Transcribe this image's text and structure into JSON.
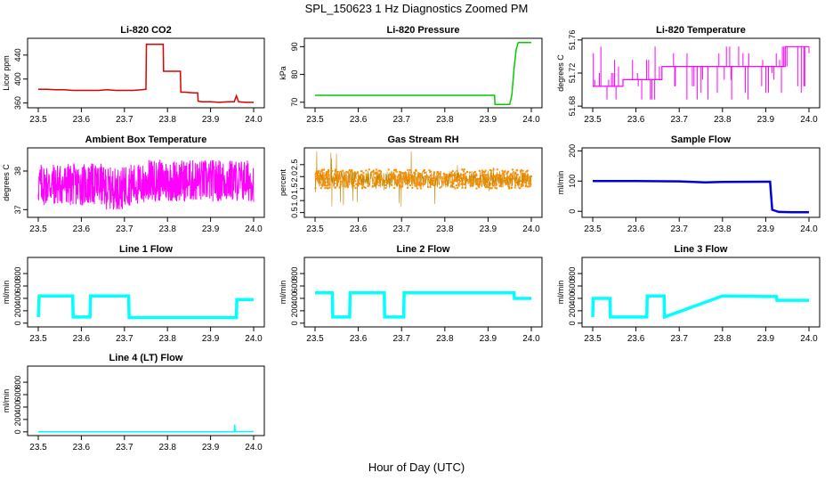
{
  "figure": {
    "title": "SPL_150623  1 Hz Diagnostics Zoomed PM",
    "xlabel": "Hour of Day (UTC)"
  },
  "chart_data": [
    {
      "id": "co2",
      "type": "line",
      "title": "Li-820 CO2",
      "ylabel": "Licor ppm",
      "color": "#dd0000",
      "xlim": [
        23.5,
        24.0
      ],
      "ylim": [
        352,
        468
      ],
      "xticks": [
        23.5,
        23.6,
        23.7,
        23.8,
        23.9,
        24.0
      ],
      "yticks": [
        360,
        400,
        440
      ],
      "series": [
        {
          "x": [
            23.5,
            23.52,
            23.54,
            23.56,
            23.58,
            23.6,
            23.62,
            23.64,
            23.66,
            23.68,
            23.7,
            23.72,
            23.74,
            23.75,
            23.751,
            23.76,
            23.78,
            23.79,
            23.791,
            23.8,
            23.82,
            23.83,
            23.831,
            23.84,
            23.86,
            23.87,
            23.871,
            23.88,
            23.9,
            23.92,
            23.94,
            23.955,
            23.96,
            23.965,
            23.98,
            24.0
          ],
          "y": [
            383,
            383,
            382,
            382,
            381,
            381,
            381,
            381,
            382,
            381,
            381,
            381,
            382,
            383,
            458,
            458,
            458,
            458,
            413,
            413,
            413,
            413,
            378,
            378,
            377,
            377,
            363,
            362,
            362,
            361,
            362,
            362,
            372,
            362,
            361,
            361
          ]
        }
      ]
    },
    {
      "id": "pressure",
      "type": "line",
      "title": "Li-820 Pressure",
      "ylabel": "kPa",
      "color": "#00cc00",
      "xlim": [
        23.5,
        24.0
      ],
      "ylim": [
        68,
        93
      ],
      "xticks": [
        23.5,
        23.6,
        23.7,
        23.8,
        23.9,
        24.0
      ],
      "yticks": [
        70,
        80,
        90
      ],
      "series": [
        {
          "x": [
            23.5,
            23.6,
            23.7,
            23.8,
            23.9,
            23.915,
            23.916,
            23.95,
            23.955,
            23.96,
            23.965,
            23.97,
            24.0
          ],
          "y": [
            72.5,
            72.5,
            72.5,
            72.5,
            72.5,
            72.5,
            69.2,
            69.2,
            72.5,
            82,
            89,
            91.5,
            91.5
          ]
        }
      ]
    },
    {
      "id": "licor-temp",
      "type": "line",
      "title": "Li-820 Temperature",
      "ylabel": "degrees C",
      "color": "#ff00ff",
      "xlim": [
        23.5,
        24.0
      ],
      "ylim": [
        51.678,
        51.762
      ],
      "xticks": [
        23.5,
        23.6,
        23.7,
        23.8,
        23.9,
        24.0
      ],
      "yticks": [
        51.68,
        51.72,
        51.76
      ],
      "series": [
        {
          "x": [
            23.5,
            23.54,
            23.55,
            23.56,
            23.57,
            23.58,
            23.6,
            23.62,
            23.64,
            23.66,
            23.7,
            23.75,
            23.8,
            23.85,
            23.9,
            23.94,
            23.945,
            23.96,
            23.98,
            24.0
          ],
          "y": [
            51.704,
            51.704,
            51.704,
            51.704,
            51.712,
            51.712,
            51.712,
            51.712,
            51.712,
            51.728,
            51.728,
            51.728,
            51.728,
            51.728,
            51.728,
            51.728,
            51.752,
            51.752,
            51.752,
            51.752
          ]
        }
      ]
    },
    {
      "id": "box-temp",
      "type": "line",
      "title": "Ambient Box Temperature",
      "ylabel": "degrees C",
      "color": "#ff00ff",
      "xlim": [
        23.5,
        24.0
      ],
      "ylim": [
        36.8,
        38.6
      ],
      "xticks": [
        23.5,
        23.6,
        23.7,
        23.8,
        23.9,
        24.0
      ],
      "yticks": [
        37.0,
        38.0
      ],
      "series": [
        {
          "x": [
            23.5,
            23.6,
            23.65,
            23.7,
            23.8,
            23.9,
            24.0
          ],
          "y": [
            37.7,
            37.7,
            37.6,
            37.7,
            37.8,
            37.8,
            37.8
          ]
        }
      ]
    },
    {
      "id": "rh",
      "type": "scatter",
      "title": "Gas Stream RH",
      "ylabel": "percent",
      "color": "#ff8c00",
      "xlim": [
        23.5,
        24.0
      ],
      "ylim": [
        0.3,
        3.2
      ],
      "xticks": [
        23.5,
        23.6,
        23.7,
        23.8,
        23.9,
        24.0
      ],
      "yticks": [
        0.5,
        1.0,
        1.5,
        2.0,
        2.5
      ],
      "series": [
        {
          "x": [
            23.5,
            23.6,
            23.7,
            23.8,
            23.9,
            24.0
          ],
          "y": [
            1.9,
            1.9,
            1.9,
            1.9,
            1.9,
            1.9
          ]
        }
      ]
    },
    {
      "id": "sample-flow",
      "type": "line",
      "title": "Sample Flow",
      "ylabel": "ml/min",
      "color": "#0000dd",
      "xlim": [
        23.5,
        24.0
      ],
      "ylim": [
        -20,
        210
      ],
      "xticks": [
        23.5,
        23.6,
        23.7,
        23.8,
        23.9,
        24.0
      ],
      "yticks": [
        0,
        100,
        200
      ],
      "series": [
        {
          "x": [
            23.5,
            23.6,
            23.7,
            23.76,
            23.8,
            23.9,
            23.91,
            23.915,
            23.93,
            23.96,
            24.0
          ],
          "y": [
            100,
            100,
            99,
            96,
            97,
            98,
            98,
            5,
            -2,
            -3,
            -3
          ]
        }
      ]
    },
    {
      "id": "line1",
      "type": "line",
      "title": "Line 1 Flow",
      "ylabel": "ml/min",
      "color": "#00ffff",
      "xlim": [
        23.5,
        24.0
      ],
      "ylim": [
        -60,
        1060
      ],
      "xticks": [
        23.5,
        23.6,
        23.7,
        23.8,
        23.9,
        24.0
      ],
      "yticks": [
        0,
        200,
        400,
        600,
        800
      ],
      "series": [
        {
          "x": [
            23.5,
            23.502,
            23.58,
            23.581,
            23.62,
            23.621,
            23.71,
            23.711,
            23.8,
            23.9,
            23.96,
            23.961,
            24.0
          ],
          "y": [
            100,
            440,
            440,
            100,
            100,
            440,
            440,
            90,
            90,
            90,
            90,
            380,
            380
          ]
        }
      ]
    },
    {
      "id": "line2",
      "type": "line",
      "title": "Line 2 Flow",
      "ylabel": "ml/min",
      "color": "#00ffff",
      "xlim": [
        23.5,
        24.0
      ],
      "ylim": [
        -60,
        1060
      ],
      "xticks": [
        23.5,
        23.6,
        23.7,
        23.8,
        23.9,
        24.0
      ],
      "yticks": [
        0,
        200,
        400,
        600,
        800
      ],
      "series": [
        {
          "x": [
            23.5,
            23.54,
            23.541,
            23.58,
            23.581,
            23.66,
            23.661,
            23.705,
            23.706,
            23.8,
            23.9,
            23.96,
            23.961,
            24.0
          ],
          "y": [
            490,
            490,
            100,
            100,
            490,
            490,
            100,
            100,
            490,
            490,
            490,
            490,
            400,
            400
          ]
        }
      ]
    },
    {
      "id": "line3",
      "type": "line",
      "title": "Line 3 Flow",
      "ylabel": "ml/min",
      "color": "#00ffff",
      "xlim": [
        23.5,
        24.0
      ],
      "ylim": [
        -60,
        1060
      ],
      "xticks": [
        23.5,
        23.6,
        23.7,
        23.8,
        23.9,
        24.0
      ],
      "yticks": [
        0,
        200,
        400,
        600,
        800
      ],
      "series": [
        {
          "x": [
            23.5,
            23.501,
            23.54,
            23.541,
            23.625,
            23.626,
            23.665,
            23.666,
            23.8,
            23.9,
            23.925,
            23.926,
            24.0
          ],
          "y": [
            100,
            400,
            400,
            100,
            100,
            440,
            440,
            100,
            440,
            430,
            430,
            370,
            370
          ]
        }
      ]
    },
    {
      "id": "line4",
      "type": "line",
      "title": "Line 4 (LT) Flow",
      "ylabel": "ml/min",
      "color": "#00ffff",
      "xlim": [
        23.5,
        24.0
      ],
      "ylim": [
        -60,
        1060
      ],
      "xticks": [
        23.5,
        23.6,
        23.7,
        23.8,
        23.9,
        24.0
      ],
      "yticks": [
        0,
        200,
        400,
        600,
        800
      ],
      "series": [
        {
          "x": [
            23.5,
            23.6,
            23.7,
            23.8,
            23.9,
            23.955,
            23.956,
            23.957,
            23.96,
            24.0
          ],
          "y": [
            0,
            0,
            0,
            0,
            0,
            0,
            120,
            10,
            5,
            5
          ]
        }
      ]
    }
  ]
}
